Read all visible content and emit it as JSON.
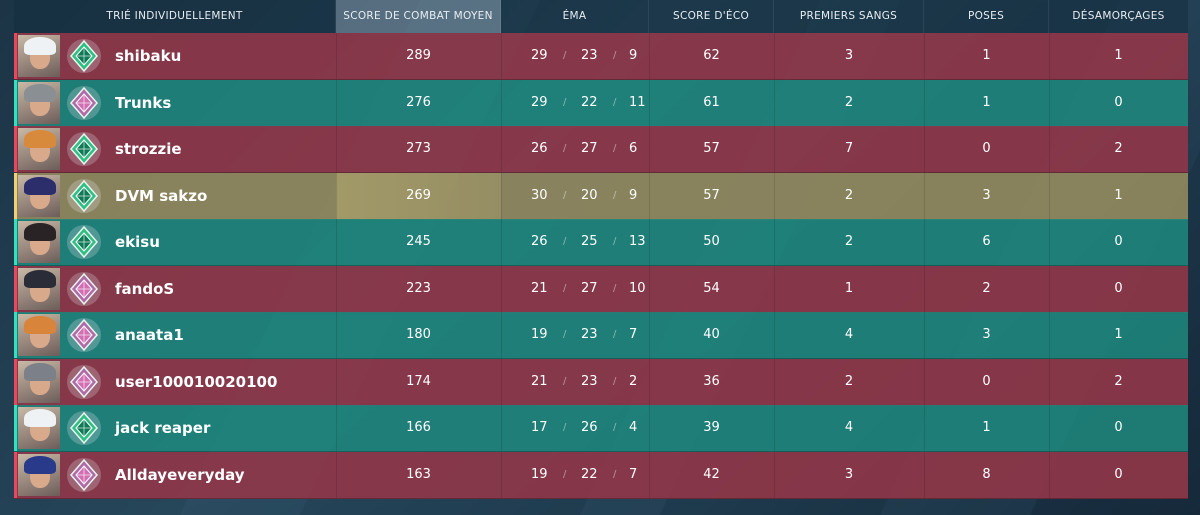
{
  "header": {
    "sort_label": "TRIÉ INDIVIDUELLEMENT",
    "acs": "SCORE DE COMBAT MOYEN",
    "kda": "ÉMA",
    "econ": "SCORE D'ÉCO",
    "first_bloods": "PREMIERS SANGS",
    "plants": "POSES",
    "defuses": "DÉSAMORÇAGES"
  },
  "kda_separator": "/",
  "colors": {
    "enemy": "#963748",
    "ally": "#1e8c80",
    "self": "#968c5f"
  },
  "players": [
    {
      "name": "shibaku",
      "team": "red",
      "agent_icon": "agent-portrait-icon",
      "rank_icon": "emerald-rank-icon",
      "acs": "289",
      "k": "29",
      "d": "23",
      "a": "9",
      "econ": "62",
      "fb": "3",
      "plants": "1",
      "defuses": "1"
    },
    {
      "name": "Trunks",
      "team": "green",
      "agent_icon": "agent-portrait-icon",
      "rank_icon": "diamond-rank-icon",
      "acs": "276",
      "k": "29",
      "d": "22",
      "a": "11",
      "econ": "61",
      "fb": "2",
      "plants": "1",
      "defuses": "0"
    },
    {
      "name": "strozzie",
      "team": "red",
      "agent_icon": "agent-portrait-icon",
      "rank_icon": "emerald-rank-icon",
      "acs": "273",
      "k": "26",
      "d": "27",
      "a": "6",
      "econ": "57",
      "fb": "7",
      "plants": "0",
      "defuses": "2"
    },
    {
      "name": "DVM sakzo",
      "team": "gold",
      "agent_icon": "agent-portrait-icon",
      "rank_icon": "emerald-rank-icon",
      "acs": "269",
      "k": "30",
      "d": "20",
      "a": "9",
      "econ": "57",
      "fb": "2",
      "plants": "3",
      "defuses": "1"
    },
    {
      "name": "ekisu",
      "team": "green",
      "agent_icon": "agent-portrait-icon",
      "rank_icon": "emerald-rank-icon",
      "acs": "245",
      "k": "26",
      "d": "25",
      "a": "13",
      "econ": "50",
      "fb": "2",
      "plants": "6",
      "defuses": "0"
    },
    {
      "name": "fandoS",
      "team": "red",
      "agent_icon": "agent-portrait-icon",
      "rank_icon": "diamond-rank-icon",
      "acs": "223",
      "k": "21",
      "d": "27",
      "a": "10",
      "econ": "54",
      "fb": "1",
      "plants": "2",
      "defuses": "0"
    },
    {
      "name": "anaata1",
      "team": "green",
      "agent_icon": "agent-portrait-icon",
      "rank_icon": "diamond-rank-icon",
      "acs": "180",
      "k": "19",
      "d": "23",
      "a": "7",
      "econ": "40",
      "fb": "4",
      "plants": "3",
      "defuses": "1"
    },
    {
      "name": "user100010020100",
      "team": "red",
      "agent_icon": "agent-portrait-icon",
      "rank_icon": "diamond-rank-icon",
      "acs": "174",
      "k": "21",
      "d": "23",
      "a": "2",
      "econ": "36",
      "fb": "2",
      "plants": "0",
      "defuses": "2"
    },
    {
      "name": "jack reaper",
      "team": "green",
      "agent_icon": "agent-portrait-icon",
      "rank_icon": "emerald-rank-icon",
      "acs": "166",
      "k": "17",
      "d": "26",
      "a": "4",
      "econ": "39",
      "fb": "4",
      "plants": "1",
      "defuses": "0"
    },
    {
      "name": "Alldayeveryday",
      "team": "red",
      "agent_icon": "agent-portrait-icon",
      "rank_icon": "diamond-rank-icon",
      "acs": "163",
      "k": "19",
      "d": "22",
      "a": "7",
      "econ": "42",
      "fb": "3",
      "plants": "8",
      "defuses": "0"
    }
  ]
}
